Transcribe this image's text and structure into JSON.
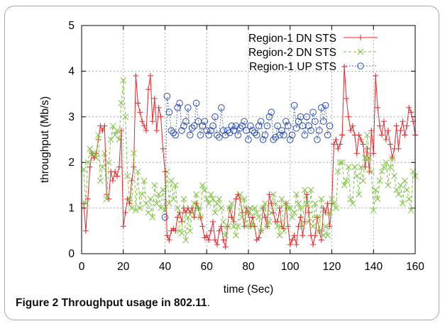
{
  "caption": {
    "label": "Figure 2",
    "text": "Throughput usage in 802.11",
    "period": "."
  },
  "chart_data": {
    "type": "line",
    "title": "",
    "xlabel": "time (Sec)",
    "ylabel": "throughput (Mb/s)",
    "xlim": [
      0,
      160
    ],
    "ylim": [
      0,
      5
    ],
    "xticks": [
      0,
      20,
      40,
      60,
      80,
      100,
      120,
      140,
      160
    ],
    "yticks": [
      0,
      1,
      2,
      3,
      4,
      5
    ],
    "grid": true,
    "legend_position": "top-right",
    "series": [
      {
        "name": "Region-1 DN STS",
        "color": "#e8262a",
        "line_style": "solid",
        "marker": "plus",
        "x": [
          1,
          2,
          3,
          4,
          5,
          6,
          7,
          8,
          9,
          10,
          11,
          12,
          13,
          14,
          15,
          16,
          17,
          18,
          19,
          20,
          21,
          22,
          23,
          24,
          25,
          26,
          27,
          28,
          29,
          30,
          31,
          32,
          33,
          34,
          35,
          36,
          37,
          38,
          39,
          40,
          41,
          42,
          43,
          44,
          45,
          46,
          47,
          48,
          49,
          50,
          51,
          52,
          53,
          54,
          55,
          56,
          57,
          58,
          59,
          60,
          61,
          62,
          63,
          64,
          65,
          66,
          67,
          68,
          69,
          70,
          71,
          72,
          73,
          74,
          75,
          76,
          77,
          78,
          79,
          80,
          81,
          82,
          83,
          84,
          85,
          86,
          87,
          88,
          89,
          90,
          91,
          92,
          93,
          94,
          95,
          96,
          97,
          98,
          99,
          100,
          101,
          102,
          103,
          104,
          105,
          106,
          107,
          108,
          109,
          110,
          111,
          112,
          113,
          114,
          115,
          116,
          117,
          118,
          119,
          120,
          121,
          122,
          123,
          124,
          125,
          126,
          127,
          128,
          129,
          130,
          131,
          132,
          133,
          134,
          135,
          136,
          137,
          138,
          139,
          140,
          141,
          142,
          143,
          144,
          145,
          146,
          147,
          148,
          149,
          150,
          151,
          152,
          153,
          154,
          155,
          156,
          157,
          158,
          159,
          160
        ],
        "y": [
          1.1,
          0.5,
          1.2,
          1.9,
          2.2,
          2.1,
          2.2,
          2.5,
          2.8,
          2.7,
          2.8,
          1.3,
          1.2,
          1.8,
          1.6,
          1.8,
          1.7,
          1.9,
          2.7,
          0.6,
          0.9,
          1.2,
          1.1,
          1.6,
          1.9,
          3.9,
          3.3,
          3.1,
          2.9,
          2.8,
          2.7,
          3.6,
          3.9,
          2.9,
          3.4,
          2.7,
          3.2,
          3.0,
          2.3,
          1.8,
          0.4,
          0.3,
          0.5,
          0.55,
          0.5,
          0.8,
          0.9,
          0.7,
          1.0,
          0.9,
          1.0,
          0.9,
          1.0,
          0.8,
          1.1,
          1.0,
          0.8,
          0.6,
          0.35,
          0.4,
          0.3,
          0.5,
          0.7,
          0.3,
          0.2,
          0.5,
          0.6,
          0.3,
          0.15,
          0.6,
          1.0,
          0.8,
          0.7,
          1.2,
          1.3,
          1.2,
          0.9,
          0.6,
          1.0,
          0.9,
          0.6,
          0.8,
          0.6,
          0.3,
          0.35,
          0.5,
          1.0,
          0.8,
          0.6,
          1.3,
          1.1,
          0.9,
          0.7,
          0.7,
          1.0,
          0.6,
          0.55,
          1.1,
          0.6,
          0.2,
          0.3,
          0.4,
          0.2,
          0.6,
          0.8,
          0.4,
          0.7,
          1.3,
          0.9,
          0.4,
          0.2,
          0.4,
          0.8,
          0.5,
          0.3,
          1.0,
          0.9,
          1.1,
          0.6,
          1.1,
          2.4,
          2.5,
          2.3,
          2.4,
          2.6,
          4.1,
          3.4,
          3.0,
          2.7,
          2.8,
          2.6,
          2.2,
          2.6,
          2.5,
          2.4,
          1.9,
          2.3,
          1.8,
          2.7,
          2.2,
          3.9,
          3.2,
          2.8,
          2.6,
          2.9,
          2.5,
          2.7,
          2.4,
          2.1,
          2.3,
          2.8,
          2.3,
          2.7,
          2.9,
          2.6,
          2.8,
          3.2,
          3.1,
          2.9,
          2.6
        ]
      },
      {
        "name": "Region-2 DN STS",
        "color": "#7dc242",
        "line_style": "dashed",
        "marker": "x",
        "x": [
          1,
          2,
          3,
          4,
          5,
          6,
          7,
          8,
          9,
          10,
          11,
          12,
          13,
          14,
          15,
          16,
          17,
          18,
          19,
          20,
          21,
          22,
          23,
          24,
          25,
          26,
          27,
          28,
          29,
          30,
          31,
          32,
          33,
          34,
          35,
          36,
          37,
          38,
          39,
          40,
          41,
          42,
          43,
          44,
          45,
          46,
          47,
          48,
          49,
          50,
          51,
          52,
          53,
          54,
          55,
          56,
          57,
          58,
          59,
          60,
          61,
          62,
          63,
          64,
          65,
          66,
          67,
          68,
          69,
          70,
          71,
          72,
          73,
          74,
          75,
          76,
          77,
          78,
          79,
          80,
          81,
          82,
          83,
          84,
          85,
          86,
          87,
          88,
          89,
          90,
          91,
          92,
          93,
          94,
          95,
          96,
          97,
          98,
          99,
          100,
          101,
          102,
          103,
          104,
          105,
          106,
          107,
          108,
          109,
          110,
          111,
          112,
          113,
          114,
          115,
          116,
          117,
          118,
          119,
          120,
          121,
          122,
          123,
          124,
          125,
          126,
          127,
          128,
          129,
          130,
          131,
          132,
          133,
          134,
          135,
          136,
          137,
          138,
          139,
          140,
          141,
          142,
          143,
          144,
          145,
          146,
          147,
          148,
          149,
          150,
          151,
          152,
          153,
          154,
          155,
          156,
          157,
          158,
          159,
          160
        ],
        "y": [
          1.85,
          1.1,
          2.0,
          2.3,
          2.2,
          2.2,
          2.1,
          2.6,
          1.6,
          1.9,
          2.2,
          1.2,
          2.0,
          2.5,
          2.8,
          2.6,
          2.7,
          2.5,
          3.3,
          3.8,
          3.0,
          1.7,
          1.2,
          1.0,
          2.2,
          0.95,
          1.8,
          1.0,
          1.3,
          1.6,
          1.1,
          0.9,
          1.2,
          0.8,
          1.5,
          1.1,
          1.3,
          1.0,
          1.4,
          0.95,
          1.8,
          1.1,
          1.6,
          1.2,
          1.5,
          1.0,
          0.5,
          0.45,
          1.2,
          0.3,
          0.8,
          0.5,
          0.9,
          1.1,
          1.3,
          1.0,
          0.8,
          1.5,
          1.4,
          1.2,
          1.1,
          1.3,
          1.2,
          0.9,
          1.1,
          1.2,
          1.0,
          0.7,
          0.4,
          0.6,
          1.0,
          1.1,
          0.6,
          0.4,
          0.6,
          1.3,
          0.8,
          1.2,
          0.6,
          0.9,
          1.0,
          0.6,
          1.0,
          0.9,
          0.8,
          0.5,
          1.0,
          1.1,
          0.6,
          0.7,
          0.9,
          1.3,
          1.1,
          0.6,
          0.4,
          1.2,
          0.5,
          1.1,
          1.0,
          1.0,
          0.8,
          0.9,
          1.3,
          1.1,
          1.0,
          0.6,
          1.4,
          1.1,
          0.7,
          1.4,
          0.6,
          1.1,
          0.8,
          0.5,
          1.2,
          0.4,
          0.6,
          0.4,
          0.9,
          1.2,
          1.1,
          1.0,
          1.8,
          2.0,
          2.0,
          1.5,
          1.6,
          1.9,
          1.2,
          1.1,
          1.9,
          1.7,
          1.3,
          1.9,
          1.6,
          2.1,
          2.6,
          2.1,
          1.8,
          0.95,
          1.4,
          1.2,
          1.6,
          1.8,
          1.9,
          2.0,
          1.5,
          1.9,
          2.1,
          1.7,
          1.4,
          1.3,
          1.5,
          1.1,
          1.6,
          1.4,
          1.2,
          0.95,
          1.8,
          1.7
        ]
      },
      {
        "name": "Region-1 UP STS",
        "color": "#2c4fb3",
        "line_style": "dotted",
        "marker": "circle",
        "x": [
          40,
          41,
          42,
          43,
          44,
          45,
          46,
          47,
          48,
          49,
          50,
          51,
          52,
          53,
          54,
          55,
          56,
          57,
          58,
          59,
          60,
          61,
          62,
          63,
          64,
          65,
          66,
          67,
          68,
          69,
          70,
          71,
          72,
          73,
          74,
          75,
          76,
          77,
          78,
          79,
          80,
          81,
          82,
          83,
          84,
          85,
          86,
          87,
          88,
          89,
          90,
          91,
          92,
          93,
          94,
          95,
          96,
          97,
          98,
          99,
          100,
          101,
          102,
          103,
          104,
          105,
          106,
          107,
          108,
          109,
          110,
          111,
          112,
          113,
          114,
          115,
          116,
          117,
          118,
          119
        ],
        "y": [
          0.8,
          3.45,
          3.1,
          2.7,
          2.65,
          2.6,
          3.2,
          3.3,
          2.7,
          2.8,
          2.9,
          3.2,
          2.6,
          2.75,
          2.8,
          3.3,
          2.9,
          2.6,
          2.8,
          2.9,
          2.7,
          2.6,
          2.7,
          2.8,
          3.0,
          2.6,
          2.55,
          3.2,
          2.7,
          2.6,
          2.7,
          2.65,
          2.8,
          2.7,
          2.8,
          2.6,
          2.75,
          2.8,
          2.9,
          2.7,
          2.5,
          2.8,
          2.7,
          2.65,
          2.6,
          2.8,
          2.9,
          2.5,
          2.6,
          2.8,
          3.0,
          3.1,
          2.5,
          2.55,
          2.8,
          2.6,
          2.7,
          2.6,
          2.9,
          2.8,
          2.5,
          2.6,
          3.25,
          2.75,
          2.9,
          3.0,
          2.8,
          2.6,
          3.0,
          2.8,
          2.7,
          3.1,
          2.9,
          2.5,
          2.7,
          3.2,
          2.9,
          3.25,
          2.6,
          2.8
        ]
      }
    ]
  }
}
